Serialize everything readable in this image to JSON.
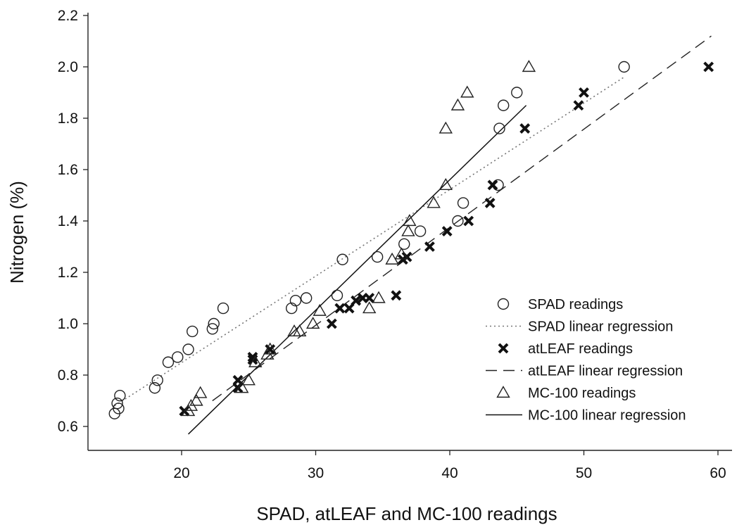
{
  "chart_data": {
    "type": "scatter",
    "title": "",
    "xlabel": "SPAD, atLEAF and MC-100 readings",
    "ylabel": "Nitrogen (%)",
    "xlim": [
      13,
      60
    ],
    "ylim": [
      0.5,
      2.2
    ],
    "x_ticks": [
      20,
      30,
      40,
      50,
      60
    ],
    "y_ticks": [
      0.6,
      0.8,
      1.0,
      1.2,
      1.4,
      1.6,
      1.8,
      2.0,
      2.2
    ],
    "x_tick_labels": [
      "20",
      "30",
      "40",
      "50",
      "60"
    ],
    "y_tick_labels": [
      "0.6",
      "0.8",
      "1.0",
      "1.2",
      "1.4",
      "1.6",
      "1.8",
      "2.0",
      "2.2"
    ],
    "grid": false,
    "legend_position": "bottom-right",
    "series": [
      {
        "name": "SPAD readings",
        "kind": "points",
        "marker": "circle",
        "points": [
          [
            15.0,
            0.65
          ],
          [
            15.3,
            0.67
          ],
          [
            15.2,
            0.69
          ],
          [
            15.4,
            0.72
          ],
          [
            18.0,
            0.75
          ],
          [
            18.2,
            0.78
          ],
          [
            19.0,
            0.85
          ],
          [
            19.7,
            0.87
          ],
          [
            20.5,
            0.9
          ],
          [
            20.8,
            0.97
          ],
          [
            22.3,
            0.98
          ],
          [
            22.4,
            1.0
          ],
          [
            23.1,
            1.06
          ],
          [
            28.2,
            1.06
          ],
          [
            28.5,
            1.09
          ],
          [
            29.3,
            1.1
          ],
          [
            31.6,
            1.11
          ],
          [
            32.0,
            1.25
          ],
          [
            34.6,
            1.26
          ],
          [
            36.6,
            1.31
          ],
          [
            37.8,
            1.36
          ],
          [
            40.6,
            1.4
          ],
          [
            41.0,
            1.47
          ],
          [
            43.6,
            1.54
          ],
          [
            43.7,
            1.76
          ],
          [
            44.0,
            1.85
          ],
          [
            45.0,
            1.9
          ],
          [
            53.0,
            2.0
          ]
        ]
      },
      {
        "name": "SPAD linear regression",
        "kind": "line",
        "style": "dotted",
        "points": [
          [
            15.0,
            0.68
          ],
          [
            53.0,
            1.96
          ]
        ]
      },
      {
        "name": "atLEAF readings",
        "kind": "points",
        "marker": "x",
        "points": [
          [
            20.2,
            0.66
          ],
          [
            24.2,
            0.75
          ],
          [
            24.2,
            0.78
          ],
          [
            25.3,
            0.86
          ],
          [
            25.3,
            0.87
          ],
          [
            26.6,
            0.9
          ],
          [
            31.2,
            1.0
          ],
          [
            31.8,
            1.06
          ],
          [
            32.5,
            1.06
          ],
          [
            33.0,
            1.09
          ],
          [
            33.5,
            1.1
          ],
          [
            34.0,
            1.1
          ],
          [
            36.0,
            1.11
          ],
          [
            36.5,
            1.25
          ],
          [
            36.8,
            1.26
          ],
          [
            38.5,
            1.3
          ],
          [
            39.8,
            1.36
          ],
          [
            41.4,
            1.4
          ],
          [
            43.0,
            1.47
          ],
          [
            43.2,
            1.54
          ],
          [
            45.6,
            1.76
          ],
          [
            49.6,
            1.85
          ],
          [
            50.0,
            1.9
          ],
          [
            59.3,
            2.0
          ]
        ]
      },
      {
        "name": "atLEAF linear regression",
        "kind": "line",
        "style": "dashed",
        "points": [
          [
            22.3,
            0.7
          ],
          [
            59.5,
            2.12
          ]
        ]
      },
      {
        "name": "MC-100 readings",
        "kind": "points",
        "marker": "triangle",
        "points": [
          [
            20.5,
            0.66
          ],
          [
            20.7,
            0.68
          ],
          [
            21.1,
            0.7
          ],
          [
            21.4,
            0.73
          ],
          [
            24.5,
            0.75
          ],
          [
            25.0,
            0.78
          ],
          [
            25.5,
            0.85
          ],
          [
            26.4,
            0.88
          ],
          [
            26.6,
            0.9
          ],
          [
            28.4,
            0.97
          ],
          [
            28.8,
            0.97
          ],
          [
            29.8,
            1.0
          ],
          [
            30.3,
            1.05
          ],
          [
            34.0,
            1.06
          ],
          [
            34.7,
            1.1
          ],
          [
            35.7,
            1.25
          ],
          [
            36.4,
            1.27
          ],
          [
            36.9,
            1.36
          ],
          [
            37.0,
            1.4
          ],
          [
            38.8,
            1.47
          ],
          [
            39.7,
            1.54
          ],
          [
            39.7,
            1.76
          ],
          [
            40.6,
            1.85
          ],
          [
            41.3,
            1.9
          ],
          [
            45.9,
            2.0
          ]
        ]
      },
      {
        "name": "MC-100 linear regression",
        "kind": "line",
        "style": "solid",
        "points": [
          [
            20.5,
            0.57
          ],
          [
            45.7,
            1.85
          ]
        ]
      }
    ]
  },
  "legend": {
    "items": [
      {
        "label": "SPAD readings",
        "symbol": "circle"
      },
      {
        "label": "SPAD linear regression",
        "symbol": "dotted-line"
      },
      {
        "label": "atLEAF readings",
        "symbol": "x"
      },
      {
        "label": "atLEAF linear regression",
        "symbol": "dashed-line"
      },
      {
        "label": "MC-100 readings",
        "symbol": "triangle"
      },
      {
        "label": "MC-100 linear regression",
        "symbol": "solid-line"
      }
    ]
  }
}
